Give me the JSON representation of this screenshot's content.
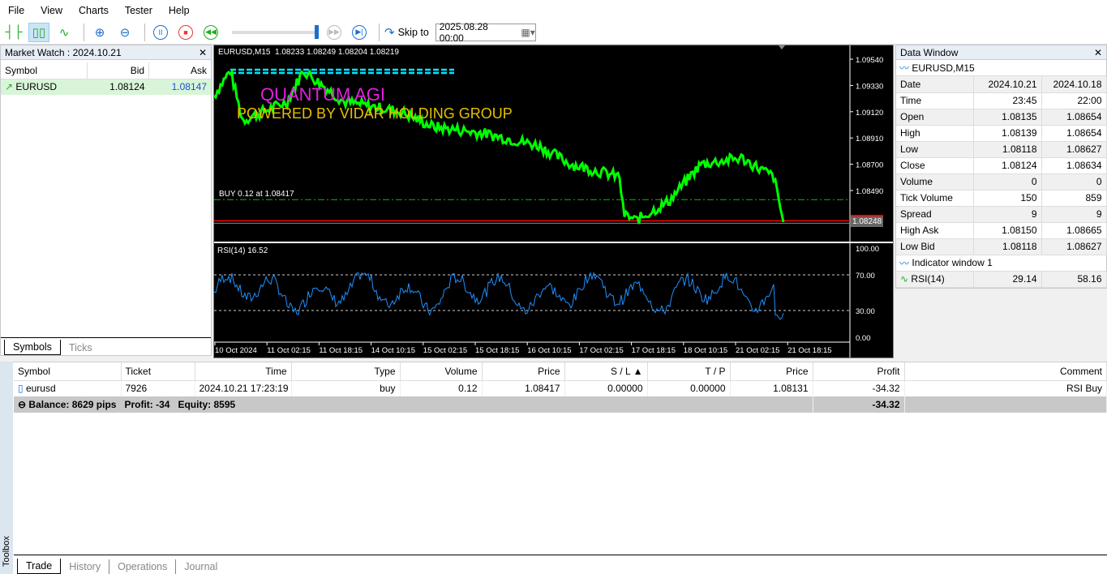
{
  "menu": [
    "File",
    "View",
    "Charts",
    "Tester",
    "Help"
  ],
  "toolbar": {
    "skip_label": "Skip to",
    "skip_date": "2025.08.28 00:00",
    "slider_value": 100
  },
  "market_watch": {
    "title": "Market Watch : 2024.10.21",
    "columns": [
      "Symbol",
      "Bid",
      "Ask"
    ],
    "rows": [
      {
        "symbol": "EURUSD",
        "bid": "1.08124",
        "ask": "1.08147"
      }
    ],
    "tabs": [
      "Symbols",
      "Ticks"
    ]
  },
  "chart": {
    "header": "EURUSD,M15  1.08233 1.08249 1.08204 1.08219",
    "watermark1": "QUANTUM AGI",
    "watermark2": "POWERED BY VIDAR HOLDING GROUP",
    "position_label": "BUY 0.12 at 1.08417",
    "price_ticks": [
      "1.09540",
      "1.09330",
      "1.09120",
      "1.08910",
      "1.08700",
      "1.08490"
    ],
    "last_price": "1.08248",
    "rsi_label": "RSI(14) 16.52",
    "rsi_ticks": [
      "100.00",
      "70.00",
      "30.00",
      "0.00"
    ],
    "time_ticks": [
      "10 Oct 2024",
      "11 Oct 02:15",
      "11 Oct 18:15",
      "14 Oct 10:15",
      "15 Oct 02:15",
      "15 Oct 18:15",
      "16 Oct 10:15",
      "17 Oct 02:15",
      "17 Oct 18:15",
      "18 Oct 10:15",
      "21 Oct 02:15",
      "21 Oct 18:15"
    ],
    "colors": {
      "price": "#00ff00",
      "rsi": "#1e90ff",
      "buy_line": "#00c000",
      "bid_line": "#ff0000",
      "levels": "#00e5ff"
    }
  },
  "data_window": {
    "title": "Data Window",
    "symbol": "EURUSD,M15",
    "rows": [
      [
        "Date",
        "2024.10.21",
        "2024.10.18"
      ],
      [
        "Time",
        "23:45",
        "22:00"
      ],
      [
        "Open",
        "1.08135",
        "1.08654"
      ],
      [
        "High",
        "1.08139",
        "1.08654"
      ],
      [
        "Low",
        "1.08118",
        "1.08627"
      ],
      [
        "Close",
        "1.08124",
        "1.08634"
      ],
      [
        "Volume",
        "0",
        "0"
      ],
      [
        "Tick Volume",
        "150",
        "859"
      ],
      [
        "Spread",
        "9",
        "9"
      ],
      [
        "High Ask",
        "1.08150",
        "1.08665"
      ],
      [
        "Low Bid",
        "1.08118",
        "1.08627"
      ]
    ],
    "indicator_window": "Indicator window 1",
    "indicator_row": [
      "RSI(14)",
      "29.14",
      "58.16"
    ]
  },
  "toolbox": {
    "label": "Toolbox",
    "columns": [
      "Symbol",
      "Ticket",
      "Time",
      "Type",
      "Volume",
      "Price",
      "S / L",
      "T / P",
      "Price",
      "Profit",
      "Comment"
    ],
    "rows": [
      [
        "eurusd",
        "7926",
        "2024.10.21 17:23:19",
        "buy",
        "0.12",
        "1.08417",
        "0.00000",
        "0.00000",
        "1.08131",
        "-34.32",
        "RSI Buy"
      ]
    ],
    "summary": "Balance: 8629 pips   Profit: -34   Equity: 8595",
    "summary_profit": "-34.32",
    "tabs": [
      "Trade",
      "History",
      "Operations",
      "Journal"
    ]
  }
}
